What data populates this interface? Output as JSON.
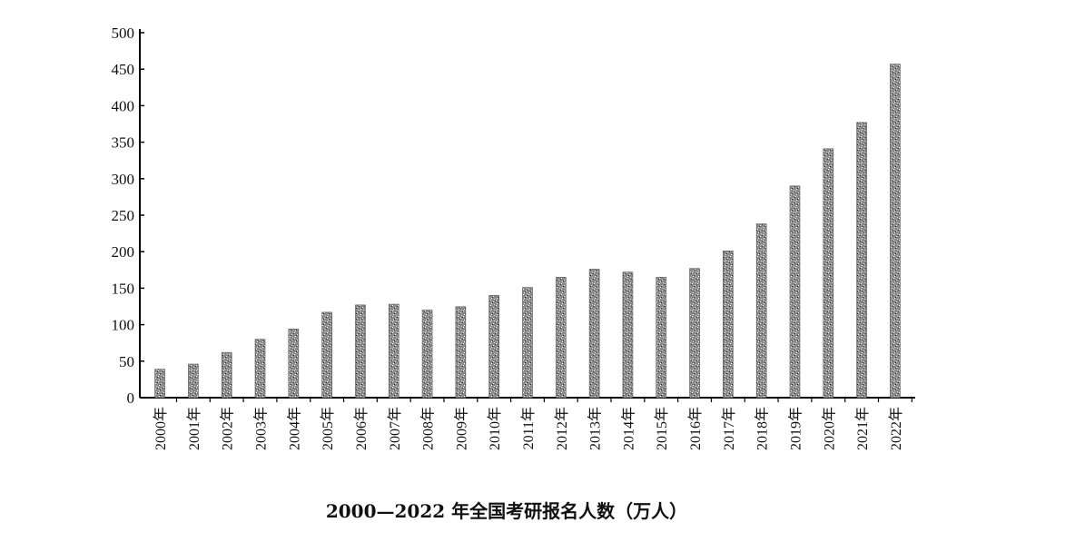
{
  "chart_data": {
    "type": "bar",
    "title": "2000—2022 年全国考研报名人数（万人）",
    "xlabel": "",
    "ylabel": "",
    "ylim": [
      0,
      500
    ],
    "yticks": [
      0,
      50,
      100,
      150,
      200,
      250,
      300,
      350,
      400,
      450,
      500
    ],
    "grid": false,
    "categories": [
      "2000年",
      "2001年",
      "2002年",
      "2003年",
      "2004年",
      "2005年",
      "2006年",
      "2007年",
      "2008年",
      "2009年",
      "2010年",
      "2011年",
      "2012年",
      "2013年",
      "2014年",
      "2015年",
      "2016年",
      "2017年",
      "2018年",
      "2019年",
      "2020年",
      "2021年",
      "2022年"
    ],
    "values": [
      39,
      46,
      62,
      80,
      94,
      117,
      127,
      128,
      120,
      124.6,
      140,
      151,
      165,
      176,
      172,
      164.9,
      177,
      201,
      238,
      290,
      341,
      377,
      457
    ],
    "colors": {
      "bar": "#7f7f7f",
      "axis": "#000000"
    }
  }
}
